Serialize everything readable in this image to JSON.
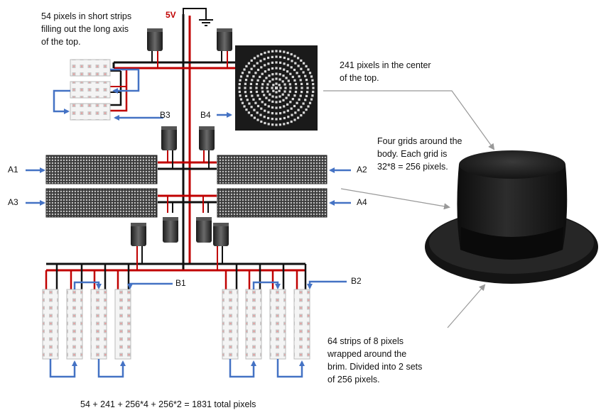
{
  "power": {
    "voltage_label": "5V"
  },
  "notes": {
    "short_strips": "54 pixels in short strips filling out the long axis of the top.",
    "center": "241 pixels in the center of the top.",
    "grids": "Four grids around the body. Each grid is 32*8 = 256 pixels.",
    "brim": "64 strips of 8 pixels wrapped around the brim. Divided into 2 sets of 256 pixels."
  },
  "inputs": {
    "a1": "A1",
    "a2": "A2",
    "a3": "A3",
    "a4": "A4",
    "b1": "B1",
    "b2": "B2",
    "b3": "B3",
    "b4": "B4"
  },
  "total": "54 + 241 + 256*4 + 256*2 =  1831 total pixels",
  "colors": {
    "positive_rail": "#c00000",
    "ground_rail": "#111111",
    "data_line": "#4472c4",
    "callout_line": "#999999"
  }
}
